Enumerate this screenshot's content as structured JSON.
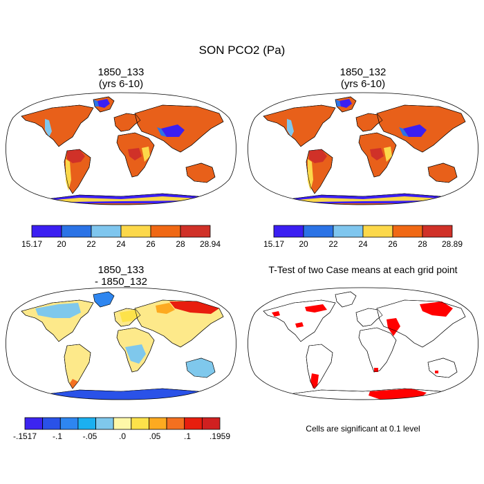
{
  "figure": {
    "main_title": "SON PCO2 (Pa)",
    "note": "Cells are significant at 0.1 level"
  },
  "colors": {
    "abs_scale": [
      "#3b1ff2",
      "#2b73e6",
      "#7fc6ee",
      "#fcd84a",
      "#f06814",
      "#d03128"
    ],
    "diff_scale": [
      "#3c24f0",
      "#2a52e8",
      "#2e86f0",
      "#1bb0f0",
      "#7fc8ec",
      "#fef8a8",
      "#fde24a",
      "#fdaa20",
      "#f47020",
      "#e81e0e",
      "#d02020"
    ],
    "land_default": "#e8601a",
    "diff_land_default": "#fde98a",
    "significant": "#ff0000",
    "ocean": "#ffffff",
    "coastline": "#000000"
  },
  "panels": [
    {
      "id": "case1",
      "title": "1850_133\n(yrs 6-10)",
      "colorbar": {
        "labels": [
          "15.17",
          "20",
          "22",
          "24",
          "26",
          "28",
          "28.94"
        ]
      }
    },
    {
      "id": "case2",
      "title": "1850_132\n(yrs 6-10)",
      "colorbar": {
        "labels": [
          "15.17",
          "20",
          "22",
          "24",
          "26",
          "28",
          "28.89"
        ]
      }
    },
    {
      "id": "diff",
      "title": "1850_133\n- 1850_132",
      "colorbar": {
        "labels": [
          "-.1517",
          "-.1",
          "-.05",
          ".0",
          ".05",
          ".1",
          ".1959"
        ]
      }
    },
    {
      "id": "ttest",
      "title": "T-Test of two Case means at each grid point"
    }
  ],
  "map_regions": {
    "abs": {
      "north_america": "#e8601a",
      "greenland_ice": "#3b1ff2",
      "greenland_coast": "#2b73e6",
      "rockies": "#7fc6ee",
      "andes": "#fcd84a",
      "amazon": "#d03128",
      "tibet": "#3b1ff2",
      "himalaya_rim": "#2b73e6",
      "sahara": "#f06814",
      "congo": "#d03128",
      "east_africa": "#fcd84a",
      "australia": "#f06814",
      "antarctica": "#3b1ff2",
      "antarctic_coast": "#fcd84a"
    },
    "diff": {
      "north_america": "#fde98a",
      "canada": "#7fc8ec",
      "greenland": "#2e86f0",
      "south_america": "#fde98a",
      "patagonia": "#f47020",
      "europe": "#fde24a",
      "siberia_east": "#e81e0e",
      "siberia_west": "#fdaa20",
      "asia": "#fde98a",
      "africa_central": "#7fc8ec",
      "australia": "#7fc8ec",
      "antarctica": "#2a52e8"
    },
    "ttest_significant": [
      "alaska_patch",
      "canada_patch",
      "us_patch",
      "arabia_patch",
      "africa_tip",
      "patagonia_patch",
      "siberia_patch",
      "antarctica_patch",
      "madagascar_dot"
    ]
  }
}
